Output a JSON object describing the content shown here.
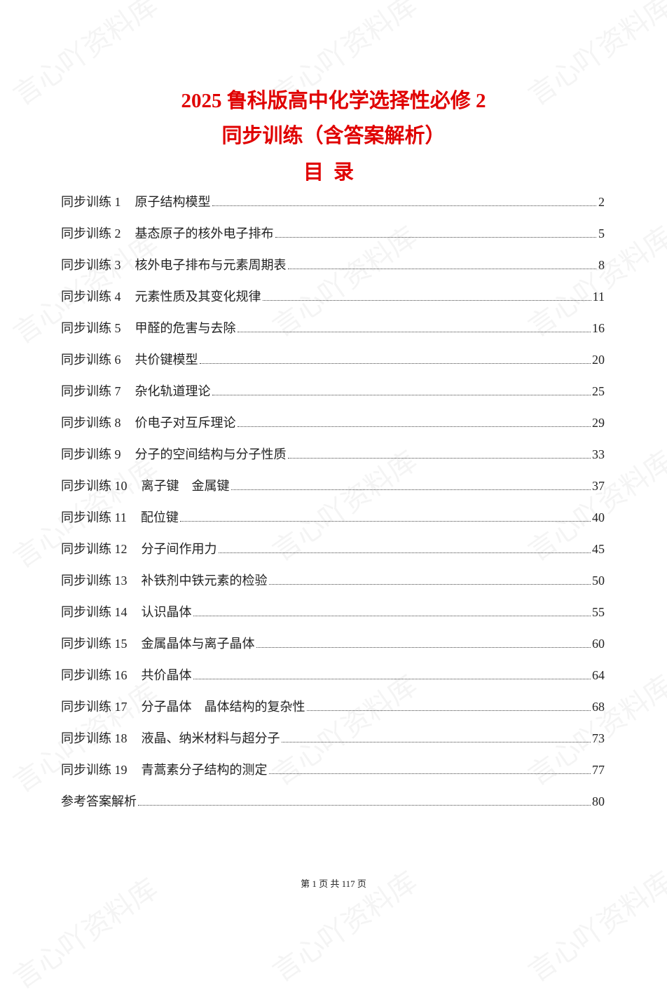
{
  "watermark": "言心吖资料库",
  "header": {
    "title_line1": "2025 鲁科版高中化学选择性必修 2",
    "title_line2": "同步训练（含答案解析）",
    "toc_heading": "目录"
  },
  "toc": [
    {
      "num": "同步训练 1",
      "title": "原子结构模型",
      "page": "2"
    },
    {
      "num": "同步训练 2",
      "title": "基态原子的核外电子排布",
      "page": "5"
    },
    {
      "num": "同步训练 3",
      "title": "核外电子排布与元素周期表",
      "page": "8"
    },
    {
      "num": "同步训练 4",
      "title": "元素性质及其变化规律",
      "page": "11"
    },
    {
      "num": "同步训练 5",
      "title": "甲醛的危害与去除",
      "page": "16"
    },
    {
      "num": "同步训练 6",
      "title": "共价键模型",
      "page": "20"
    },
    {
      "num": "同步训练 7",
      "title": "杂化轨道理论",
      "page": "25"
    },
    {
      "num": "同步训练 8",
      "title": "价电子对互斥理论",
      "page": "29"
    },
    {
      "num": "同步训练 9",
      "title": "分子的空间结构与分子性质",
      "page": "33"
    },
    {
      "num": "同步训练 10",
      "title": "离子键　金属键",
      "page": "37"
    },
    {
      "num": "同步训练 11",
      "title": "配位键",
      "page": "40"
    },
    {
      "num": "同步训练 12",
      "title": "分子间作用力",
      "page": "45"
    },
    {
      "num": "同步训练 13",
      "title": "补铁剂中铁元素的检验",
      "page": "50"
    },
    {
      "num": "同步训练 14",
      "title": "认识晶体",
      "page": "55"
    },
    {
      "num": "同步训练 15",
      "title": "金属晶体与离子晶体",
      "page": "60"
    },
    {
      "num": "同步训练 16",
      "title": "共价晶体",
      "page": "64"
    },
    {
      "num": "同步训练 17",
      "title": "分子晶体　晶体结构的复杂性",
      "page": "68"
    },
    {
      "num": "同步训练 18",
      "title": "液晶、纳米材料与超分子",
      "page": "73"
    },
    {
      "num": "同步训练 19",
      "title": "青蒿素分子结构的测定",
      "page": "77"
    },
    {
      "num": "",
      "title": "参考答案解析",
      "page": "80"
    }
  ],
  "footer": {
    "text": "第 1 页 共 117 页"
  },
  "colors": {
    "title": "#e00000",
    "text": "#222222"
  }
}
